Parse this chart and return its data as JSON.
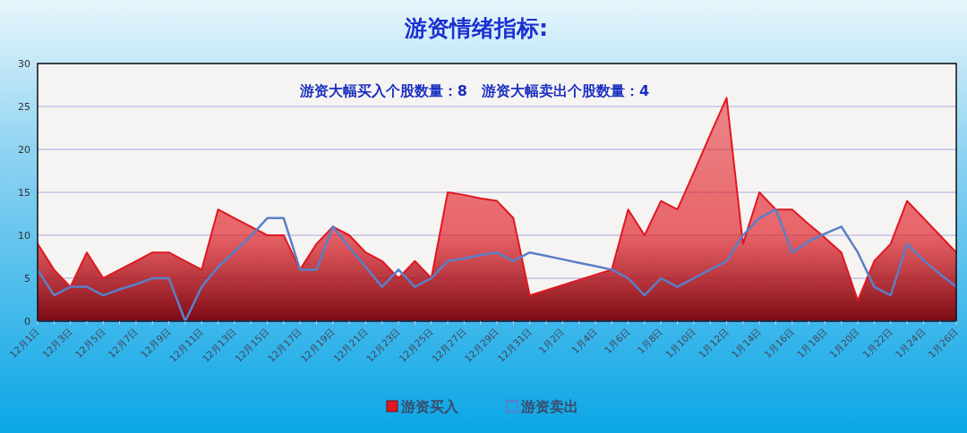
{
  "chart_data": {
    "type": "area",
    "title": "游资情绪指标:",
    "annotations": [
      "游资大幅买入个股数量：8",
      "游资大幅卖出个股数量：4"
    ],
    "categories": [
      "12月1日",
      null,
      "12月3日",
      null,
      "12月5日",
      null,
      "12月7日",
      null,
      "12月9日",
      null,
      "12月11日",
      null,
      "12月13日",
      null,
      "12月15日",
      null,
      "12月17日",
      null,
      "12月19日",
      null,
      "12月21日",
      null,
      "12月23日",
      null,
      "12月25日",
      null,
      "12月27日",
      null,
      "12月29日",
      null,
      "12月31日",
      null,
      "1月2日",
      null,
      "1月4日",
      null,
      "1月6日",
      null,
      "1月8日",
      null,
      "1月10日",
      null,
      "1月12日",
      null,
      "1月14日",
      null,
      "1月16日",
      null,
      "1月18日",
      null,
      "1月20日",
      null,
      "1月22日",
      null,
      "1月24日",
      null,
      "1月26日"
    ],
    "series": [
      {
        "name": "游资买入",
        "color": "#e01820",
        "values": [
          9,
          6,
          4,
          8,
          5,
          6,
          7,
          8,
          8,
          7,
          6,
          13,
          12,
          11,
          10,
          10,
          6,
          9,
          11,
          10,
          8,
          7,
          5,
          7,
          5,
          15,
          14.7,
          14.3,
          14,
          12,
          3,
          3.6,
          4.2,
          4.8,
          5.4,
          6,
          13,
          10,
          14,
          13,
          17.3,
          21.7,
          26,
          9,
          15,
          13,
          13,
          11.3,
          9.7,
          8,
          2.4,
          7,
          9,
          14,
          12,
          10,
          8
        ]
      },
      {
        "name": "游资卖出",
        "type": "line",
        "color": "#5b7fc8",
        "values": [
          6,
          3,
          4,
          4,
          3,
          3.7,
          4.3,
          5,
          5,
          0,
          4,
          6.3,
          8.1,
          9.9,
          12,
          12,
          6,
          6,
          11,
          8.6,
          6.3,
          4,
          6,
          4,
          5,
          7,
          7.3,
          7.7,
          8,
          7,
          8,
          7.6,
          7.2,
          6.8,
          6.4,
          6,
          5,
          3,
          5,
          4,
          5,
          6,
          7,
          10,
          12,
          13,
          8,
          9.3,
          10.2,
          11,
          8,
          4,
          3,
          9,
          7.1,
          5.5,
          4
        ]
      }
    ],
    "ylim": [
      0,
      30
    ],
    "yticks": [
      0,
      5,
      10,
      15,
      20,
      25,
      30
    ],
    "grid": "y",
    "legend": "bottom"
  }
}
